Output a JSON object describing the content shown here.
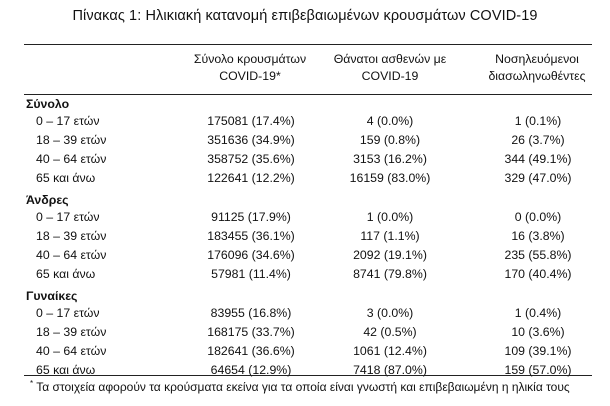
{
  "title": "Πίνακας 1: Ηλικιακή κατανομή επιβεβαιωμένων κρουσμάτων COVID-19",
  "columns": [
    {
      "line1": "Σύνολο κρουσμάτων",
      "line2": "COVID-19*"
    },
    {
      "line1": "Θάνατοι ασθενών με",
      "line2": "COVID-19"
    },
    {
      "line1": "Νοσηλευόμενοι",
      "line2": "διασωληνωθέντες"
    }
  ],
  "groups": [
    {
      "label": "Σύνολο",
      "rows": [
        {
          "age": "0 – 17 ετών",
          "cases": "175081 (17.4%)",
          "deaths": "4 (0.0%)",
          "intubated": "1 (0.1%)"
        },
        {
          "age": "18 – 39 ετών",
          "cases": "351636 (34.9%)",
          "deaths": "159 (0.8%)",
          "intubated": "26 (3.7%)"
        },
        {
          "age": "40 – 64 ετών",
          "cases": "358752 (35.6%)",
          "deaths": "3153 (16.2%)",
          "intubated": "344 (49.1%)"
        },
        {
          "age": "65 και άνω",
          "cases": "122641 (12.2%)",
          "deaths": "16159 (83.0%)",
          "intubated": "329 (47.0%)"
        }
      ]
    },
    {
      "label": "Άνδρες",
      "rows": [
        {
          "age": "0 – 17 ετών",
          "cases": "91125 (17.9%)",
          "deaths": "1 (0.0%)",
          "intubated": "0 (0.0%)"
        },
        {
          "age": "18 – 39 ετών",
          "cases": "183455 (36.1%)",
          "deaths": "117 (1.1%)",
          "intubated": "16 (3.8%)"
        },
        {
          "age": "40 – 64 ετών",
          "cases": "176096 (34.6%)",
          "deaths": "2092 (19.1%)",
          "intubated": "235 (55.8%)"
        },
        {
          "age": "65 και άνω",
          "cases": "57981 (11.4%)",
          "deaths": "8741 (79.8%)",
          "intubated": "170 (40.4%)"
        }
      ]
    },
    {
      "label": "Γυναίκες",
      "rows": [
        {
          "age": "0 – 17 ετών",
          "cases": "83955 (16.8%)",
          "deaths": "3 (0.0%)",
          "intubated": "1 (0.4%)"
        },
        {
          "age": "18 – 39 ετών",
          "cases": "168175 (33.7%)",
          "deaths": "42 (0.5%)",
          "intubated": "10 (3.6%)"
        },
        {
          "age": "40 – 64 ετών",
          "cases": "182641 (36.6%)",
          "deaths": "1061 (12.4%)",
          "intubated": "109 (39.1%)"
        },
        {
          "age": "65 και άνω",
          "cases": "64654 (12.9%)",
          "deaths": "7418 (87.0%)",
          "intubated": "159 (57.0%)"
        }
      ]
    }
  ],
  "footnote": {
    "marker": "*",
    "text": "Τα στοιχεία αφορούν τα κρούσματα εκείνα για τα οποία είναι γνωστή και επιβεβαιωμένη η ηλικία τους"
  }
}
